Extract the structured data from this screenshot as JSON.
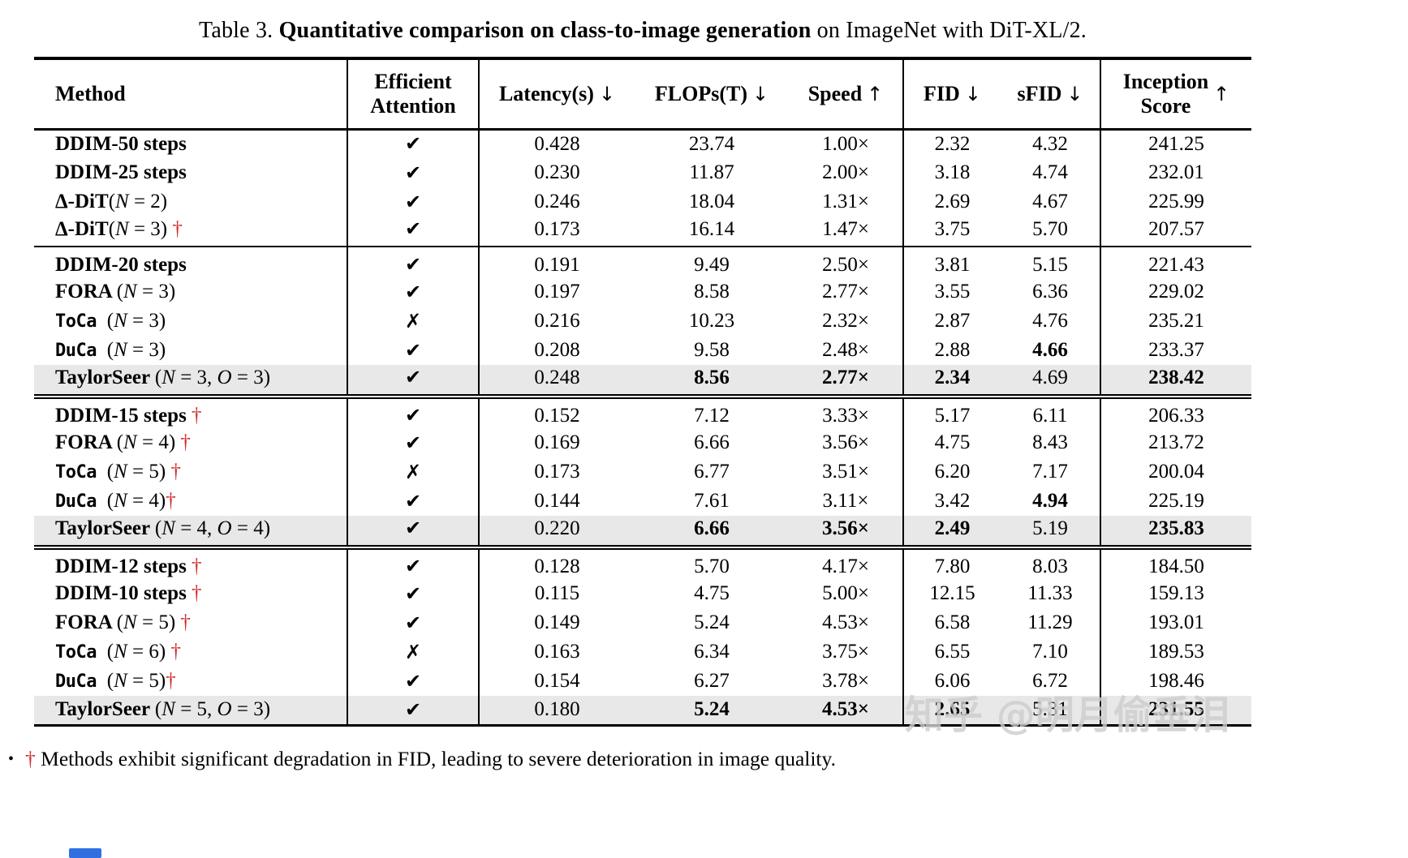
{
  "caption": {
    "prefix": "Table 3. ",
    "emph": "Quantitative comparison on class-to-image generation",
    "suffix": " on ImageNet with DiT-XL/2."
  },
  "footnote": {
    "bullet": "•",
    "dagger": "†",
    "text": " Methods exhibit significant degradation in FID, leading to severe deterioration in image quality."
  },
  "watermark": "知乎 @明月偷垂泪",
  "colors": {
    "dagger_red": "#d22b2b",
    "row_highlight": "#e8e8e8",
    "rule": "#000000",
    "watermark_gray": "rgba(205,205,205,0.82)",
    "blue_strip": "#2f6fe0"
  },
  "symbols": {
    "check": "✔",
    "cross": "✗",
    "down": "↓",
    "up": "↑"
  },
  "table": {
    "columns": [
      {
        "key": "method",
        "label": "Method",
        "arrow": ""
      },
      {
        "key": "attention",
        "label": "Efficient Attention",
        "lines": [
          "Efficient",
          "Attention"
        ],
        "arrow": ""
      },
      {
        "key": "latency",
        "label": "Latency(s)",
        "arrow": "↓"
      },
      {
        "key": "flops",
        "label": "FLOPs(T)",
        "arrow": "↓"
      },
      {
        "key": "speed",
        "label": "Speed",
        "arrow": "↑"
      },
      {
        "key": "fid",
        "label": "FID",
        "arrow": "↓"
      },
      {
        "key": "sfid",
        "label": "sFID",
        "arrow": "↓"
      },
      {
        "key": "is",
        "label": "Inception Score",
        "lines": [
          "Inception",
          "Score"
        ],
        "arrow": "↑"
      }
    ],
    "separator_columns": [
      "method",
      "attention",
      "speed",
      "sfid"
    ],
    "groups": [
      [
        {
          "method": [
            [
              "b",
              "DDIM-50 steps"
            ]
          ],
          "att": "check",
          "vals": {
            "latency": "0.428",
            "flops": "23.74",
            "speed": "1.00×",
            "fid": "2.32",
            "sfid": "4.32",
            "is": "241.25"
          },
          "bold": [],
          "hl": false
        },
        {
          "method": [
            [
              "b",
              "DDIM-25 steps"
            ]
          ],
          "att": "check",
          "vals": {
            "latency": "0.230",
            "flops": "11.87",
            "speed": "2.00×",
            "fid": "3.18",
            "sfid": "4.74",
            "is": "232.01"
          },
          "bold": [],
          "hl": false
        },
        {
          "method": [
            [
              "b",
              "Δ-DiT"
            ],
            [
              "r",
              "("
            ],
            [
              "i",
              "N"
            ],
            [
              "r",
              " = 2)"
            ]
          ],
          "att": "check",
          "vals": {
            "latency": "0.246",
            "flops": "18.04",
            "speed": "1.31×",
            "fid": "2.69",
            "sfid": "4.67",
            "is": "225.99"
          },
          "bold": [],
          "hl": false
        },
        {
          "method": [
            [
              "b",
              "Δ-DiT"
            ],
            [
              "r",
              "("
            ],
            [
              "i",
              "N"
            ],
            [
              "r",
              " = 3) "
            ],
            [
              "d",
              "†"
            ]
          ],
          "att": "check",
          "vals": {
            "latency": "0.173",
            "flops": "16.14",
            "speed": "1.47×",
            "fid": "3.75",
            "sfid": "5.70",
            "is": "207.57"
          },
          "bold": [],
          "hl": false
        }
      ],
      [
        {
          "method": [
            [
              "b",
              "DDIM-20 steps"
            ]
          ],
          "att": "check",
          "vals": {
            "latency": "0.191",
            "flops": "9.49",
            "speed": "2.50×",
            "fid": "3.81",
            "sfid": "5.15",
            "is": "221.43"
          },
          "bold": [],
          "hl": false
        },
        {
          "method": [
            [
              "b",
              "FORA "
            ],
            [
              "r",
              "("
            ],
            [
              "i",
              "N"
            ],
            [
              "r",
              " = 3)"
            ]
          ],
          "att": "check",
          "vals": {
            "latency": "0.197",
            "flops": "8.58",
            "speed": "2.77×",
            "fid": "3.55",
            "sfid": "6.36",
            "is": "229.02"
          },
          "bold": [],
          "hl": false
        },
        {
          "method": [
            [
              "tt",
              "ToCa "
            ],
            [
              "r",
              "("
            ],
            [
              "i",
              "N"
            ],
            [
              "r",
              " = 3)"
            ]
          ],
          "att": "cross",
          "vals": {
            "latency": "0.216",
            "flops": "10.23",
            "speed": "2.32×",
            "fid": "2.87",
            "sfid": "4.76",
            "is": "235.21"
          },
          "bold": [],
          "hl": false
        },
        {
          "method": [
            [
              "tt",
              "DuCa "
            ],
            [
              "r",
              "("
            ],
            [
              "i",
              "N"
            ],
            [
              "r",
              " = 3)"
            ]
          ],
          "att": "check",
          "vals": {
            "latency": "0.208",
            "flops": "9.58",
            "speed": "2.48×",
            "fid": "2.88",
            "sfid": "4.66",
            "is": "233.37"
          },
          "bold": [
            "sfid"
          ],
          "hl": false
        },
        {
          "method": [
            [
              "b",
              "TaylorSeer "
            ],
            [
              "r",
              "("
            ],
            [
              "i",
              "N"
            ],
            [
              "r",
              " = 3, "
            ],
            [
              "i",
              "O"
            ],
            [
              "r",
              " = 3)"
            ]
          ],
          "att": "check",
          "vals": {
            "latency": "0.248",
            "flops": "8.56",
            "speed": "2.77×",
            "fid": "2.34",
            "sfid": "4.69",
            "is": "238.42"
          },
          "bold": [
            "flops",
            "speed",
            "fid",
            "is"
          ],
          "hl": true
        }
      ],
      [
        {
          "method": [
            [
              "b",
              "DDIM-15 steps "
            ],
            [
              "d",
              "†"
            ]
          ],
          "att": "check",
          "vals": {
            "latency": "0.152",
            "flops": "7.12",
            "speed": "3.33×",
            "fid": "5.17",
            "sfid": "6.11",
            "is": "206.33"
          },
          "bold": [],
          "hl": false
        },
        {
          "method": [
            [
              "b",
              "FORA "
            ],
            [
              "r",
              "("
            ],
            [
              "i",
              "N"
            ],
            [
              "r",
              " = 4) "
            ],
            [
              "d",
              "†"
            ]
          ],
          "att": "check",
          "vals": {
            "latency": "0.169",
            "flops": "6.66",
            "speed": "3.56×",
            "fid": "4.75",
            "sfid": "8.43",
            "is": "213.72"
          },
          "bold": [],
          "hl": false
        },
        {
          "method": [
            [
              "tt",
              "ToCa "
            ],
            [
              "r",
              "("
            ],
            [
              "i",
              "N"
            ],
            [
              "r",
              " = 5) "
            ],
            [
              "d",
              "†"
            ]
          ],
          "att": "cross",
          "vals": {
            "latency": "0.173",
            "flops": "6.77",
            "speed": "3.51×",
            "fid": "6.20",
            "sfid": "7.17",
            "is": "200.04"
          },
          "bold": [],
          "hl": false
        },
        {
          "method": [
            [
              "tt",
              "DuCa "
            ],
            [
              "r",
              "("
            ],
            [
              "i",
              "N"
            ],
            [
              "r",
              " = 4)"
            ],
            [
              "d",
              "†"
            ]
          ],
          "att": "check",
          "vals": {
            "latency": "0.144",
            "flops": "7.61",
            "speed": "3.11×",
            "fid": "3.42",
            "sfid": "4.94",
            "is": "225.19"
          },
          "bold": [
            "sfid"
          ],
          "hl": false
        },
        {
          "method": [
            [
              "b",
              "TaylorSeer "
            ],
            [
              "r",
              "("
            ],
            [
              "i",
              "N"
            ],
            [
              "r",
              " = 4, "
            ],
            [
              "i",
              "O"
            ],
            [
              "r",
              " = 4)"
            ]
          ],
          "att": "check",
          "vals": {
            "latency": "0.220",
            "flops": "6.66",
            "speed": "3.56×",
            "fid": "2.49",
            "sfid": "5.19",
            "is": "235.83"
          },
          "bold": [
            "flops",
            "speed",
            "fid",
            "is"
          ],
          "hl": true
        }
      ],
      [
        {
          "method": [
            [
              "b",
              "DDIM-12 steps "
            ],
            [
              "d",
              "†"
            ]
          ],
          "att": "check",
          "vals": {
            "latency": "0.128",
            "flops": "5.70",
            "speed": "4.17×",
            "fid": "7.80",
            "sfid": "8.03",
            "is": "184.50"
          },
          "bold": [],
          "hl": false
        },
        {
          "method": [
            [
              "b",
              "DDIM-10 steps "
            ],
            [
              "d",
              "†"
            ]
          ],
          "att": "check",
          "vals": {
            "latency": "0.115",
            "flops": "4.75",
            "speed": "5.00×",
            "fid": "12.15",
            "sfid": "11.33",
            "is": "159.13"
          },
          "bold": [],
          "hl": false
        },
        {
          "method": [
            [
              "b",
              "FORA "
            ],
            [
              "r",
              "("
            ],
            [
              "i",
              "N"
            ],
            [
              "r",
              " = 5) "
            ],
            [
              "d",
              "†"
            ]
          ],
          "att": "check",
          "vals": {
            "latency": "0.149",
            "flops": "5.24",
            "speed": "4.53×",
            "fid": "6.58",
            "sfid": "11.29",
            "is": "193.01"
          },
          "bold": [],
          "hl": false
        },
        {
          "method": [
            [
              "tt",
              "ToCa "
            ],
            [
              "r",
              "("
            ],
            [
              "i",
              "N"
            ],
            [
              "r",
              " = 6) "
            ],
            [
              "d",
              "†"
            ]
          ],
          "att": "cross",
          "vals": {
            "latency": "0.163",
            "flops": "6.34",
            "speed": "3.75×",
            "fid": "6.55",
            "sfid": "7.10",
            "is": "189.53"
          },
          "bold": [],
          "hl": false
        },
        {
          "method": [
            [
              "tt",
              "DuCa "
            ],
            [
              "r",
              "("
            ],
            [
              "i",
              "N"
            ],
            [
              "r",
              " = 5)"
            ],
            [
              "d",
              "†"
            ]
          ],
          "att": "check",
          "vals": {
            "latency": "0.154",
            "flops": "6.27",
            "speed": "3.78×",
            "fid": "6.06",
            "sfid": "6.72",
            "is": "198.46"
          },
          "bold": [],
          "hl": false
        },
        {
          "method": [
            [
              "b",
              "TaylorSeer "
            ],
            [
              "r",
              "("
            ],
            [
              "i",
              "N"
            ],
            [
              "r",
              " = 5, "
            ],
            [
              "i",
              "O"
            ],
            [
              "r",
              " = 3)"
            ]
          ],
          "att": "check",
          "vals": {
            "latency": "0.180",
            "flops": "5.24",
            "speed": "4.53×",
            "fid": "2.65",
            "sfid": "5.31",
            "is": "231.55"
          },
          "bold": [
            "flops",
            "speed",
            "fid",
            "is"
          ],
          "hl": true
        }
      ]
    ]
  }
}
